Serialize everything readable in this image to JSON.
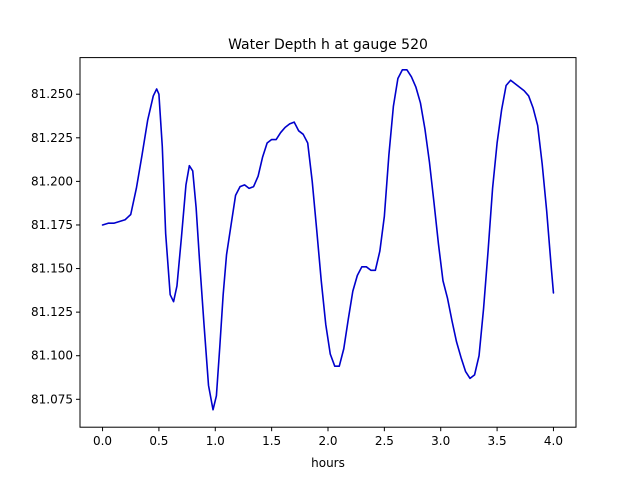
{
  "chart_data": {
    "type": "line",
    "title": "Water Depth h at gauge 520",
    "xlabel": "hours",
    "ylabel": "",
    "xlim": [
      -0.2,
      4.2
    ],
    "ylim": [
      81.059,
      81.271
    ],
    "xticks": [
      0.0,
      0.5,
      1.0,
      1.5,
      2.0,
      2.5,
      3.0,
      3.5,
      4.0
    ],
    "xtick_labels": [
      "0.0",
      "0.5",
      "1.0",
      "1.5",
      "2.0",
      "2.5",
      "3.0",
      "3.5",
      "4.0"
    ],
    "yticks": [
      81.075,
      81.1,
      81.125,
      81.15,
      81.175,
      81.2,
      81.225,
      81.25
    ],
    "ytick_labels": [
      "81.075",
      "81.100",
      "81.125",
      "81.150",
      "81.175",
      "81.200",
      "81.225",
      "81.250"
    ],
    "grid": false,
    "legend": "none",
    "series": [
      {
        "color": "#0000cc",
        "x": [
          0.0,
          0.05,
          0.1,
          0.15,
          0.2,
          0.25,
          0.3,
          0.35,
          0.4,
          0.45,
          0.48,
          0.5,
          0.53,
          0.56,
          0.6,
          0.63,
          0.66,
          0.7,
          0.74,
          0.77,
          0.8,
          0.83,
          0.86,
          0.9,
          0.94,
          0.98,
          1.01,
          1.04,
          1.07,
          1.1,
          1.14,
          1.18,
          1.22,
          1.26,
          1.3,
          1.34,
          1.38,
          1.42,
          1.46,
          1.5,
          1.54,
          1.58,
          1.62,
          1.66,
          1.7,
          1.74,
          1.78,
          1.82,
          1.86,
          1.9,
          1.94,
          1.98,
          2.02,
          2.06,
          2.1,
          2.14,
          2.18,
          2.22,
          2.26,
          2.3,
          2.34,
          2.38,
          2.42,
          2.46,
          2.5,
          2.54,
          2.58,
          2.62,
          2.66,
          2.7,
          2.74,
          2.78,
          2.82,
          2.86,
          2.9,
          2.94,
          2.98,
          3.02,
          3.06,
          3.1,
          3.14,
          3.18,
          3.22,
          3.26,
          3.3,
          3.34,
          3.38,
          3.42,
          3.46,
          3.5,
          3.54,
          3.58,
          3.62,
          3.66,
          3.7,
          3.74,
          3.78,
          3.82,
          3.86,
          3.9,
          3.94,
          3.98,
          4.0
        ],
        "y": [
          81.175,
          81.176,
          81.176,
          81.177,
          81.178,
          81.181,
          81.196,
          81.215,
          81.235,
          81.249,
          81.253,
          81.25,
          81.22,
          81.17,
          81.135,
          81.131,
          81.14,
          81.168,
          81.198,
          81.209,
          81.206,
          81.185,
          81.155,
          81.118,
          81.083,
          81.069,
          81.077,
          81.105,
          81.135,
          81.158,
          81.175,
          81.192,
          81.197,
          81.198,
          81.196,
          81.197,
          81.203,
          81.214,
          81.222,
          81.224,
          81.224,
          81.228,
          81.231,
          81.233,
          81.234,
          81.229,
          81.227,
          81.222,
          81.2,
          81.172,
          81.143,
          81.118,
          81.101,
          81.094,
          81.094,
          81.104,
          81.121,
          81.137,
          81.146,
          81.151,
          81.151,
          81.149,
          81.149,
          81.16,
          81.18,
          81.215,
          81.243,
          81.259,
          81.264,
          81.264,
          81.26,
          81.254,
          81.245,
          81.23,
          81.211,
          81.188,
          81.164,
          81.143,
          81.133,
          81.12,
          81.108,
          81.099,
          81.091,
          81.087,
          81.089,
          81.1,
          81.127,
          81.16,
          81.196,
          81.222,
          81.241,
          81.255,
          81.258,
          81.256,
          81.254,
          81.252,
          81.249,
          81.242,
          81.232,
          81.21,
          81.183,
          81.151,
          81.136
        ]
      }
    ]
  }
}
